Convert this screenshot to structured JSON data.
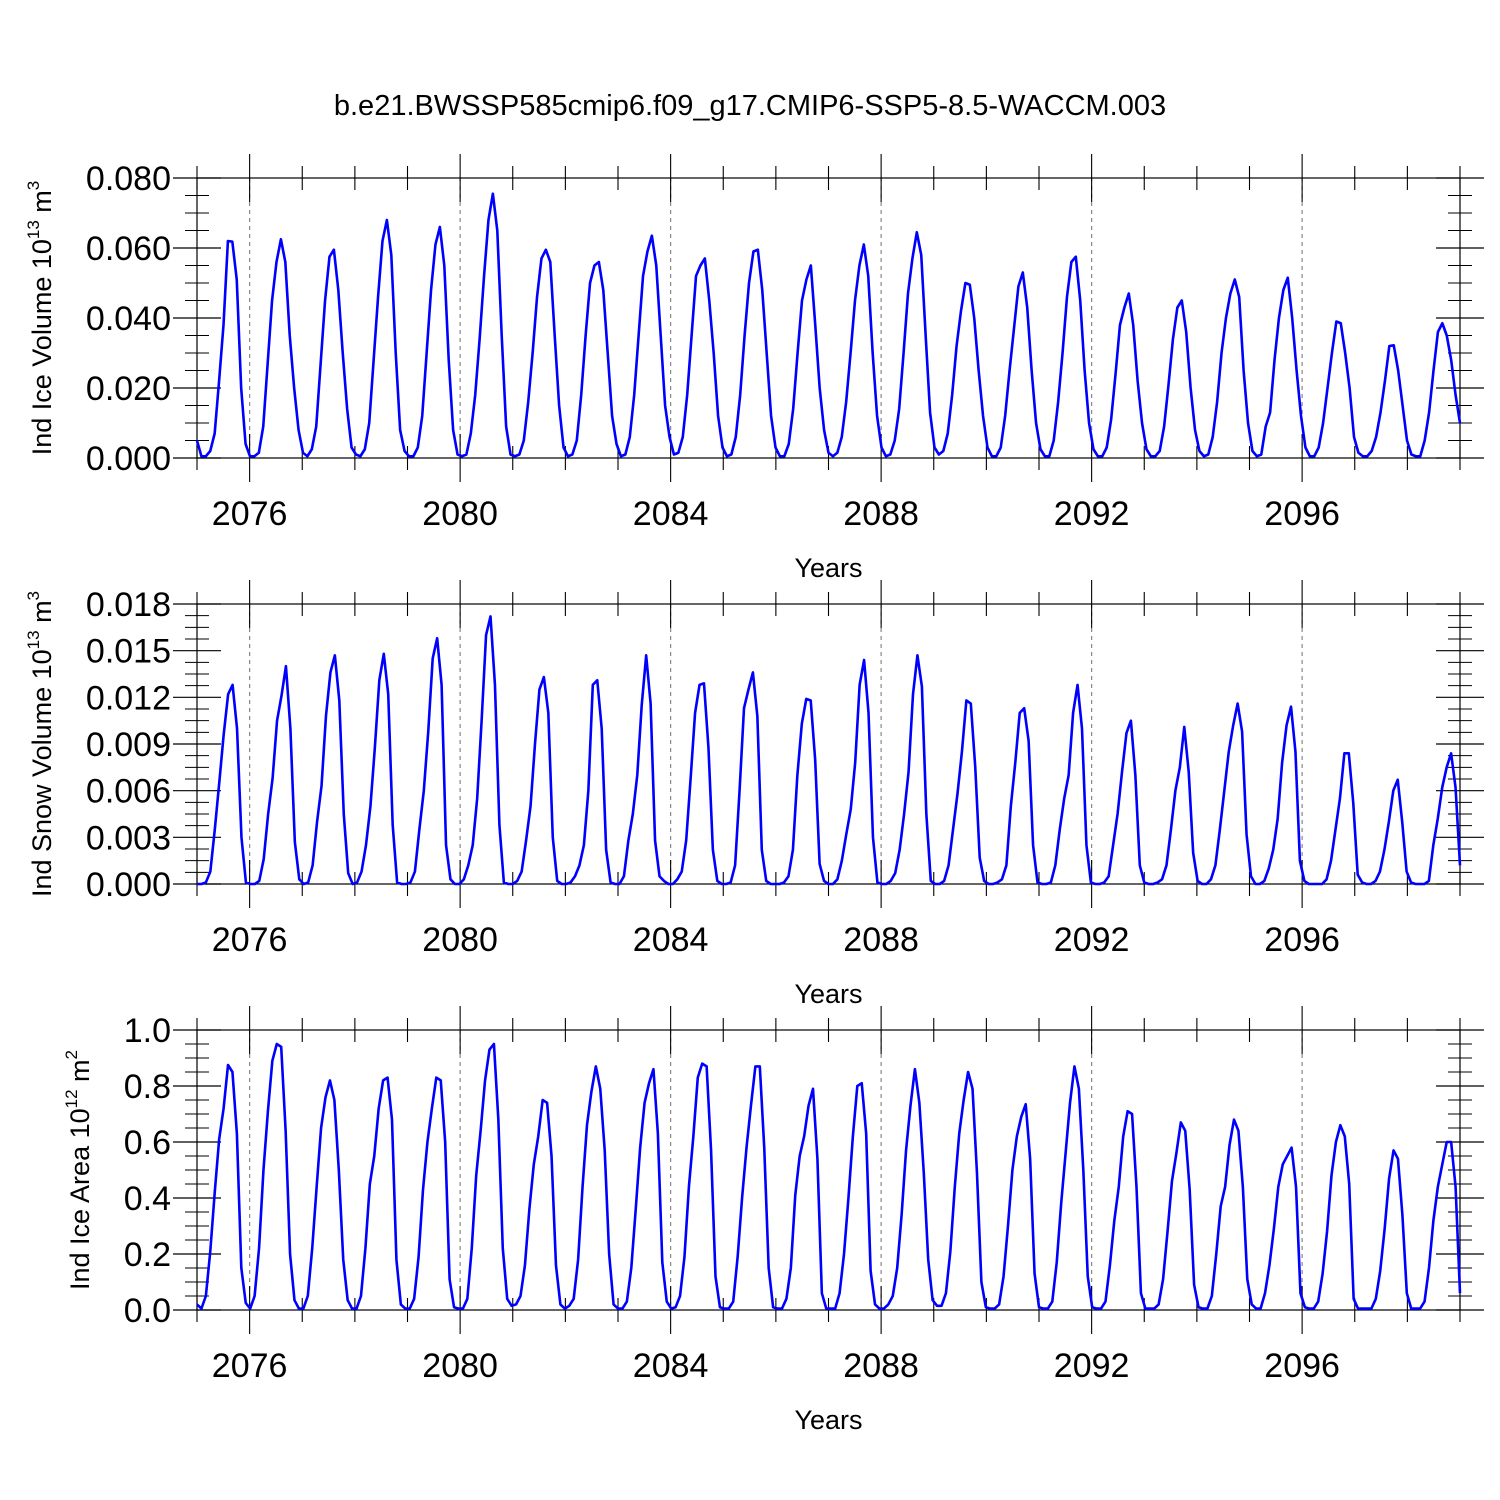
{
  "title": "b.e21.BWSSP585cmip6.f09_g17.CMIP6-SSP5-8.5-WACCM.003",
  "colors": {
    "line": "#0000ff",
    "axis": "#000000",
    "refline": "#888888"
  },
  "chart_data": [
    {
      "type": "line",
      "ylabel": {
        "text": "Ind Ice Volume 10",
        "sup": "13",
        "unit": " m",
        "unit_sup": "3"
      },
      "xlabel": "Years",
      "ylim": [
        0,
        0.08
      ],
      "yticks": [
        "0.000",
        "0.020",
        "0.040",
        "0.060",
        "0.080"
      ],
      "xlim": [
        2075,
        2099
      ],
      "xticks": [
        "2076",
        "2080",
        "2084",
        "2088",
        "2092",
        "2096"
      ],
      "series": [
        {
          "values": [
            0.005,
            0.0005,
            0.0005,
            0.002,
            0.007,
            0.022,
            0.038,
            0.062,
            0.0618,
            0.051,
            0.02,
            0.004,
            0.0005,
            0.0005,
            0.0015,
            0.009,
            0.027,
            0.045,
            0.056,
            0.0625,
            0.056,
            0.035,
            0.02,
            0.008,
            0.0015,
            0.0005,
            0.0025,
            0.009,
            0.027,
            0.045,
            0.0575,
            0.0595,
            0.048,
            0.03,
            0.014,
            0.003,
            0.001,
            0.0005,
            0.0025,
            0.01,
            0.028,
            0.046,
            0.062,
            0.068,
            0.058,
            0.03,
            0.008,
            0.002,
            0.0005,
            0.0005,
            0.003,
            0.012,
            0.03,
            0.048,
            0.061,
            0.066,
            0.055,
            0.028,
            0.008,
            0.001,
            0.0005,
            0.001,
            0.007,
            0.018,
            0.034,
            0.052,
            0.068,
            0.0755,
            0.065,
            0.035,
            0.009,
            0.001,
            0.0005,
            0.001,
            0.005,
            0.016,
            0.03,
            0.046,
            0.057,
            0.0595,
            0.056,
            0.035,
            0.015,
            0.003,
            0.0005,
            0.001,
            0.005,
            0.018,
            0.035,
            0.05,
            0.055,
            0.056,
            0.048,
            0.03,
            0.012,
            0.004,
            0.0005,
            0.001,
            0.006,
            0.018,
            0.035,
            0.052,
            0.059,
            0.0635,
            0.055,
            0.035,
            0.015,
            0.006,
            0.001,
            0.0015,
            0.006,
            0.018,
            0.035,
            0.052,
            0.055,
            0.057,
            0.045,
            0.03,
            0.012,
            0.003,
            0.0005,
            0.001,
            0.006,
            0.018,
            0.035,
            0.05,
            0.059,
            0.0595,
            0.048,
            0.03,
            0.012,
            0.003,
            0.0005,
            0.0005,
            0.004,
            0.014,
            0.03,
            0.045,
            0.051,
            0.055,
            0.038,
            0.02,
            0.008,
            0.0015,
            0.0005,
            0.0015,
            0.006,
            0.016,
            0.03,
            0.045,
            0.055,
            0.061,
            0.052,
            0.03,
            0.012,
            0.003,
            0.0005,
            0.001,
            0.005,
            0.014,
            0.03,
            0.047,
            0.057,
            0.0645,
            0.058,
            0.035,
            0.013,
            0.003,
            0.001,
            0.002,
            0.007,
            0.018,
            0.032,
            0.042,
            0.05,
            0.0495,
            0.04,
            0.025,
            0.012,
            0.003,
            0.0005,
            0.0005,
            0.003,
            0.012,
            0.025,
            0.037,
            0.049,
            0.053,
            0.043,
            0.025,
            0.01,
            0.0025,
            0.0005,
            0.0005,
            0.005,
            0.016,
            0.03,
            0.046,
            0.056,
            0.0575,
            0.045,
            0.025,
            0.01,
            0.0025,
            0.0005,
            0.0005,
            0.003,
            0.011,
            0.024,
            0.038,
            0.043,
            0.047,
            0.038,
            0.022,
            0.01,
            0.0025,
            0.0005,
            0.0005,
            0.002,
            0.009,
            0.021,
            0.034,
            0.043,
            0.045,
            0.036,
            0.02,
            0.008,
            0.002,
            0.0005,
            0.001,
            0.006,
            0.016,
            0.03,
            0.04,
            0.047,
            0.051,
            0.046,
            0.025,
            0.01,
            0.002,
            0.0005,
            0.001,
            0.009,
            0.013,
            0.028,
            0.04,
            0.048,
            0.0515,
            0.04,
            0.025,
            0.012,
            0.003,
            0.0005,
            0.0005,
            0.003,
            0.01,
            0.02,
            0.03,
            0.039,
            0.0385,
            0.03,
            0.02,
            0.006,
            0.0015,
            0.0005,
            0.0005,
            0.002,
            0.006,
            0.013,
            0.022,
            0.032,
            0.0322,
            0.025,
            0.015,
            0.005,
            0.001,
            0.0005,
            0.0005,
            0.005,
            0.013,
            0.025,
            0.036,
            0.0385,
            0.035,
            0.028,
            0.018,
            0.01
          ]
        }
      ]
    },
    {
      "type": "line",
      "ylabel": {
        "text": "Ind Snow Volume 10",
        "sup": "13",
        "unit": " m",
        "unit_sup": "3"
      },
      "xlabel": "Years",
      "ylim": [
        0,
        0.018
      ],
      "yticks": [
        "0.000",
        "0.003",
        "0.006",
        "0.009",
        "0.012",
        "0.015",
        "0.018"
      ],
      "xlim": [
        2075,
        2099
      ],
      "xticks": [
        "2076",
        "2080",
        "2084",
        "2088",
        "2092",
        "2096"
      ],
      "series": [
        {
          "values": [
            0.0,
            0.0,
            0.0001,
            0.0008,
            0.0035,
            0.0065,
            0.0096,
            0.0122,
            0.0128,
            0.01,
            0.003,
            0.0001,
            0.0,
            0.0,
            0.0002,
            0.0016,
            0.0045,
            0.0068,
            0.0105,
            0.0121,
            0.014,
            0.01,
            0.0027,
            0.0003,
            0.0,
            0.0001,
            0.0012,
            0.004,
            0.0063,
            0.0108,
            0.0136,
            0.0147,
            0.0118,
            0.0045,
            0.0007,
            0.0,
            0.0001,
            0.0008,
            0.0025,
            0.005,
            0.0088,
            0.0131,
            0.0148,
            0.0122,
            0.0038,
            0.0001,
            0.0,
            0.0,
            0.0001,
            0.0008,
            0.0035,
            0.006,
            0.0098,
            0.0145,
            0.0158,
            0.0128,
            0.0025,
            0.0003,
            0.0,
            0.0,
            0.0003,
            0.0012,
            0.0025,
            0.0055,
            0.0105,
            0.016,
            0.0172,
            0.0128,
            0.0038,
            0.0001,
            0.0,
            0.0,
            0.0002,
            0.0008,
            0.0028,
            0.005,
            0.009,
            0.0125,
            0.0133,
            0.011,
            0.003,
            0.0002,
            0.0,
            0.0,
            0.0001,
            0.0005,
            0.0012,
            0.0025,
            0.006,
            0.0128,
            0.0131,
            0.01,
            0.0022,
            0.0001,
            0.0,
            0.0,
            0.0005,
            0.0028,
            0.0045,
            0.007,
            0.0115,
            0.0147,
            0.0116,
            0.0028,
            0.0005,
            0.0002,
            0.0,
            0.0,
            0.0003,
            0.0008,
            0.0028,
            0.0068,
            0.011,
            0.0128,
            0.0129,
            0.0088,
            0.0022,
            0.0002,
            0.0,
            0.0,
            0.0001,
            0.0012,
            0.006,
            0.0113,
            0.0125,
            0.0136,
            0.0108,
            0.0022,
            0.0002,
            0.0,
            0.0,
            0.0,
            0.0001,
            0.0005,
            0.0022,
            0.007,
            0.0103,
            0.0119,
            0.0118,
            0.008,
            0.0013,
            0.0002,
            0.0,
            0.0,
            0.0003,
            0.0015,
            0.0032,
            0.0048,
            0.0078,
            0.0128,
            0.0144,
            0.011,
            0.003,
            0.0001,
            0.0,
            0.0,
            0.0002,
            0.0007,
            0.0022,
            0.0045,
            0.0072,
            0.0122,
            0.0147,
            0.0127,
            0.0045,
            0.0002,
            0.0,
            0.0,
            0.0002,
            0.0012,
            0.0035,
            0.0058,
            0.0085,
            0.0118,
            0.0116,
            0.0075,
            0.0017,
            0.0002,
            0.0,
            0.0,
            0.0001,
            0.0003,
            0.0012,
            0.005,
            0.0078,
            0.011,
            0.0113,
            0.0092,
            0.0025,
            0.0001,
            0.0,
            0.0,
            0.0001,
            0.0012,
            0.0035,
            0.0055,
            0.007,
            0.011,
            0.0128,
            0.01,
            0.0025,
            0.0001,
            0.0,
            0.0,
            0.0001,
            0.0005,
            0.0025,
            0.0045,
            0.0072,
            0.0097,
            0.0105,
            0.007,
            0.0012,
            0.0001,
            0.0,
            0.0,
            0.0001,
            0.0003,
            0.0012,
            0.0035,
            0.006,
            0.0075,
            0.0101,
            0.0072,
            0.002,
            0.0002,
            0.0,
            0.0,
            0.0003,
            0.0012,
            0.0035,
            0.006,
            0.0085,
            0.0102,
            0.0116,
            0.0098,
            0.0032,
            0.0005,
            0.0,
            0.0,
            0.0002,
            0.001,
            0.0022,
            0.0042,
            0.0078,
            0.0102,
            0.0114,
            0.0085,
            0.0015,
            0.0002,
            0.0,
            0.0,
            0.0,
            0.0,
            0.0003,
            0.0015,
            0.0035,
            0.0055,
            0.0084,
            0.0084,
            0.0052,
            0.0006,
            0.0001,
            0.0,
            0.0,
            0.0002,
            0.0008,
            0.0022,
            0.004,
            0.006,
            0.0067,
            0.004,
            0.0008,
            0.0001,
            0.0,
            0.0,
            0.0,
            0.0002,
            0.0025,
            0.0042,
            0.0062,
            0.0075,
            0.0084,
            0.0062,
            0.0012
          ]
        }
      ]
    },
    {
      "type": "line",
      "ylabel": {
        "text": "Ind Ice Area 10",
        "sup": "12",
        "unit": " m",
        "unit_sup": "2"
      },
      "xlabel": "Years",
      "ylim": [
        0,
        1.0
      ],
      "yticks": [
        "0.0",
        "0.2",
        "0.4",
        "0.6",
        "0.8",
        "1.0"
      ],
      "xlim": [
        2075,
        2099
      ],
      "xticks": [
        "2076",
        "2080",
        "2084",
        "2088",
        "2092",
        "2096"
      ],
      "series": [
        {
          "values": [
            0.02,
            0.005,
            0.05,
            0.21,
            0.42,
            0.61,
            0.72,
            0.875,
            0.85,
            0.63,
            0.15,
            0.025,
            0.005,
            0.05,
            0.22,
            0.5,
            0.71,
            0.89,
            0.95,
            0.94,
            0.64,
            0.2,
            0.035,
            0.005,
            0.005,
            0.05,
            0.22,
            0.44,
            0.65,
            0.76,
            0.82,
            0.75,
            0.5,
            0.18,
            0.035,
            0.005,
            0.005,
            0.05,
            0.22,
            0.45,
            0.55,
            0.72,
            0.82,
            0.83,
            0.68,
            0.18,
            0.02,
            0.005,
            0.005,
            0.04,
            0.19,
            0.43,
            0.6,
            0.72,
            0.83,
            0.82,
            0.6,
            0.11,
            0.01,
            0.005,
            0.005,
            0.04,
            0.22,
            0.48,
            0.64,
            0.82,
            0.93,
            0.95,
            0.68,
            0.22,
            0.04,
            0.015,
            0.02,
            0.05,
            0.16,
            0.36,
            0.52,
            0.62,
            0.75,
            0.74,
            0.55,
            0.16,
            0.02,
            0.005,
            0.015,
            0.04,
            0.18,
            0.44,
            0.66,
            0.78,
            0.87,
            0.79,
            0.57,
            0.2,
            0.02,
            0.005,
            0.005,
            0.03,
            0.15,
            0.36,
            0.58,
            0.74,
            0.81,
            0.86,
            0.63,
            0.17,
            0.03,
            0.005,
            0.01,
            0.05,
            0.19,
            0.44,
            0.62,
            0.83,
            0.88,
            0.87,
            0.57,
            0.12,
            0.01,
            0.005,
            0.005,
            0.03,
            0.19,
            0.4,
            0.58,
            0.73,
            0.87,
            0.87,
            0.58,
            0.15,
            0.01,
            0.005,
            0.005,
            0.04,
            0.15,
            0.41,
            0.55,
            0.62,
            0.73,
            0.79,
            0.54,
            0.06,
            0.005,
            0.005,
            0.005,
            0.06,
            0.2,
            0.4,
            0.62,
            0.8,
            0.81,
            0.63,
            0.14,
            0.02,
            0.005,
            0.005,
            0.02,
            0.05,
            0.15,
            0.34,
            0.57,
            0.73,
            0.86,
            0.74,
            0.49,
            0.18,
            0.035,
            0.015,
            0.015,
            0.06,
            0.21,
            0.44,
            0.63,
            0.75,
            0.85,
            0.79,
            0.49,
            0.1,
            0.01,
            0.005,
            0.005,
            0.02,
            0.12,
            0.3,
            0.5,
            0.62,
            0.69,
            0.735,
            0.54,
            0.13,
            0.01,
            0.005,
            0.005,
            0.03,
            0.17,
            0.38,
            0.56,
            0.74,
            0.87,
            0.79,
            0.5,
            0.12,
            0.01,
            0.005,
            0.005,
            0.03,
            0.16,
            0.32,
            0.44,
            0.62,
            0.71,
            0.7,
            0.44,
            0.06,
            0.005,
            0.005,
            0.005,
            0.02,
            0.11,
            0.28,
            0.46,
            0.56,
            0.67,
            0.64,
            0.43,
            0.09,
            0.01,
            0.005,
            0.005,
            0.05,
            0.2,
            0.37,
            0.44,
            0.59,
            0.68,
            0.64,
            0.44,
            0.11,
            0.02,
            0.005,
            0.005,
            0.06,
            0.16,
            0.29,
            0.44,
            0.52,
            0.55,
            0.58,
            0.44,
            0.06,
            0.01,
            0.005,
            0.005,
            0.03,
            0.13,
            0.28,
            0.48,
            0.6,
            0.66,
            0.62,
            0.45,
            0.04,
            0.005,
            0.005,
            0.005,
            0.005,
            0.04,
            0.14,
            0.29,
            0.47,
            0.57,
            0.54,
            0.34,
            0.06,
            0.005,
            0.005,
            0.005,
            0.03,
            0.15,
            0.32,
            0.44,
            0.52,
            0.6,
            0.6,
            0.44,
            0.06
          ]
        }
      ]
    }
  ]
}
